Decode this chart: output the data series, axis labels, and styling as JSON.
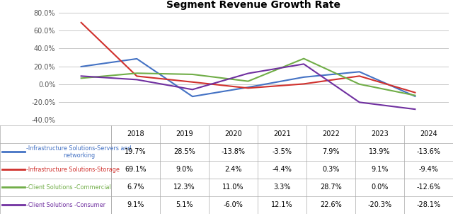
{
  "title": "Segment Revenue Growth Rate",
  "years": [
    2018,
    2019,
    2020,
    2021,
    2022,
    2023,
    2024
  ],
  "series": [
    {
      "label": "-Infrastructure Solutions-Servers and\nnetworking",
      "color": "#4472C4",
      "values": [
        19.7,
        28.5,
        -13.8,
        -3.5,
        7.9,
        13.9,
        -13.6
      ]
    },
    {
      "label": "-Infrastructure Solutions-Storage",
      "color": "#D0312D",
      "values": [
        69.1,
        9.0,
        2.4,
        -4.4,
        0.3,
        9.1,
        -9.4
      ]
    },
    {
      "label": "-Client Solutions -Commercial",
      "color": "#70AD47",
      "values": [
        6.7,
        12.3,
        11.0,
        3.3,
        28.7,
        0.0,
        -12.6
      ]
    },
    {
      "label": "-Client Solutions -Consumer",
      "color": "#7030A0",
      "values": [
        9.1,
        5.1,
        -6.0,
        12.1,
        22.6,
        -20.3,
        -28.1
      ]
    }
  ],
  "ylim": [
    -40.0,
    80.0
  ],
  "yticks": [
    -40.0,
    -20.0,
    0.0,
    20.0,
    40.0,
    60.0,
    80.0
  ],
  "table_values": [
    [
      "19.7%",
      "28.5%",
      "-13.8%",
      "-3.5%",
      "7.9%",
      "13.9%",
      "-13.6%"
    ],
    [
      "69.1%",
      "9.0%",
      "2.4%",
      "-4.4%",
      "0.3%",
      "9.1%",
      "-9.4%"
    ],
    [
      "6.7%",
      "12.3%",
      "11.0%",
      "3.3%",
      "28.7%",
      "0.0%",
      "-12.6%"
    ],
    [
      "9.1%",
      "5.1%",
      "-6.0%",
      "12.1%",
      "22.6%",
      "-20.3%",
      "-28.1%"
    ]
  ],
  "row_colors": [
    "#4472C4",
    "#D0312D",
    "#70AD47",
    "#7030A0"
  ],
  "background_color": "#FFFFFF",
  "grid_color": "#C0C0C0"
}
